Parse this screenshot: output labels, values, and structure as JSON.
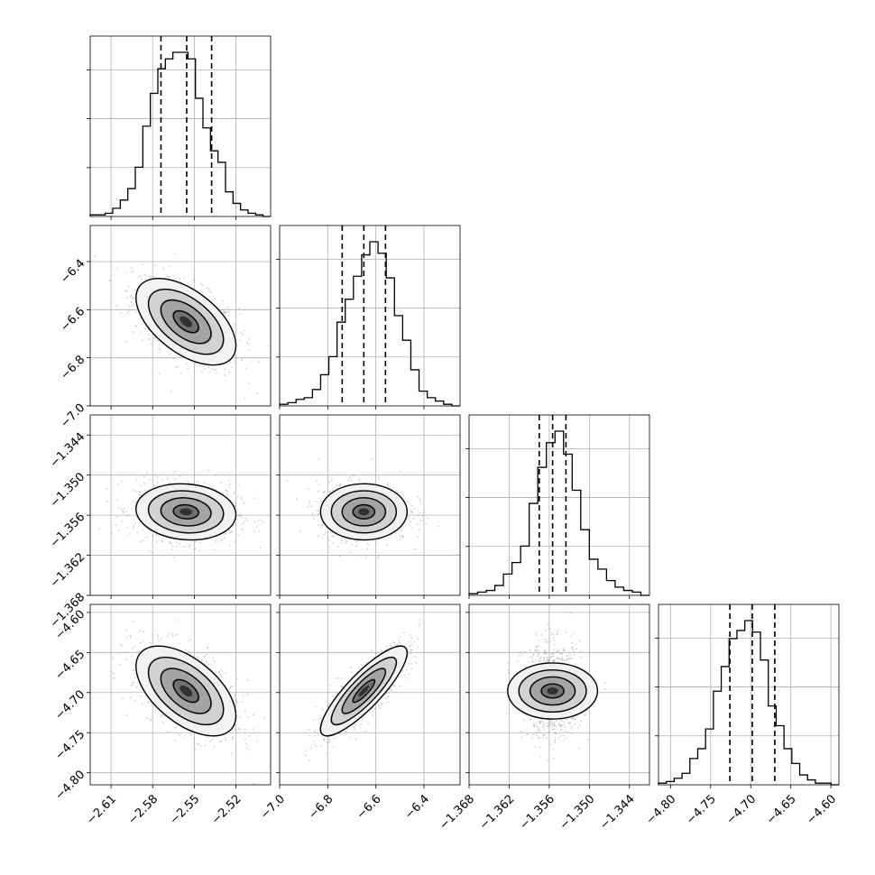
{
  "chart_data": {
    "type": "corner",
    "params": [
      {
        "range": [
          -2.625,
          -2.495
        ],
        "ticks": [
          -2.61,
          -2.58,
          -2.55,
          -2.52
        ],
        "tick_labels": [
          "−2.61",
          "−2.58",
          "−2.55",
          "−2.52"
        ],
        "quantiles": [
          -2.574,
          -2.5555,
          -2.5375
        ],
        "median": -2.556,
        "sigma": 0.018,
        "hist": [
          0.01,
          0.01,
          0.02,
          0.05,
          0.1,
          0.17,
          0.3,
          0.55,
          0.75,
          0.9,
          0.96,
          1.0,
          1.0,
          0.96,
          0.72,
          0.54,
          0.4,
          0.33,
          0.15,
          0.08,
          0.04,
          0.02,
          0.01,
          0.0
        ]
      },
      {
        "range": [
          -7.0,
          -6.25
        ],
        "ticks": [
          -7.0,
          -6.8,
          -6.6,
          -6.4
        ],
        "tick_labels": [
          "−7.0",
          "−6.8",
          "−6.6",
          "−6.4"
        ],
        "quantiles": [
          -6.74,
          -6.65,
          -6.56
        ],
        "median": -6.65,
        "sigma": 0.09,
        "hist": [
          0.01,
          0.02,
          0.04,
          0.05,
          0.1,
          0.19,
          0.3,
          0.51,
          0.65,
          0.79,
          0.92,
          1.0,
          0.93,
          0.78,
          0.55,
          0.4,
          0.22,
          0.09,
          0.05,
          0.03,
          0.01,
          0.0
        ]
      },
      {
        "range": [
          -1.368,
          -1.341
        ],
        "ticks": [
          -1.368,
          -1.362,
          -1.356,
          -1.35,
          -1.344
        ],
        "tick_labels": [
          "−1.368",
          "−1.362",
          "−1.356",
          "−1.350",
          "−1.344"
        ],
        "quantiles": [
          -1.3575,
          -1.3555,
          -1.3535
        ],
        "median": -1.3555,
        "sigma": 0.0021,
        "hist": [
          0.01,
          0.02,
          0.03,
          0.06,
          0.13,
          0.2,
          0.3,
          0.56,
          0.78,
          0.93,
          1.0,
          0.86,
          0.64,
          0.4,
          0.22,
          0.16,
          0.09,
          0.05,
          0.03,
          0.02,
          0.0
        ]
      },
      {
        "range": [
          -4.815,
          -4.59
        ],
        "ticks": [
          -4.8,
          -4.75,
          -4.7,
          -4.65,
          -4.6
        ],
        "tick_labels": [
          "−4.80",
          "−4.75",
          "−4.70",
          "−4.65",
          "−4.60"
        ],
        "quantiles": [
          -4.726,
          -4.698,
          -4.67
        ],
        "median": -4.698,
        "sigma": 0.028,
        "hist": [
          0.01,
          0.02,
          0.04,
          0.07,
          0.16,
          0.22,
          0.34,
          0.57,
          0.72,
          0.89,
          0.94,
          1.0,
          0.93,
          0.76,
          0.48,
          0.36,
          0.22,
          0.13,
          0.06,
          0.03,
          0.01,
          0.01,
          0.0
        ]
      }
    ],
    "correlations": [
      [
        1.0,
        0.0,
        0.0,
        0.0
      ],
      [
        -0.55,
        1.0,
        0.0,
        0.0
      ],
      [
        -0.1,
        0.0,
        1.0,
        0.0
      ],
      [
        -0.55,
        0.85,
        0.0,
        1.0
      ]
    ],
    "contour_levels_sigma": [
      0.5,
      1.0,
      1.5,
      2.0
    ],
    "quantile_style": "dashed",
    "grid": true,
    "colors": {
      "line": "#000000",
      "grid": "#b0b0b0",
      "scatter": "#9a9a9a",
      "density_dark": "#2a2a2a"
    }
  }
}
